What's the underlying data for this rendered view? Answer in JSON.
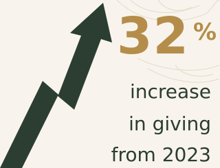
{
  "stat": {
    "value": "32",
    "unit": "%"
  },
  "lines": [
    "increase",
    "in giving",
    "from 2023"
  ]
}
